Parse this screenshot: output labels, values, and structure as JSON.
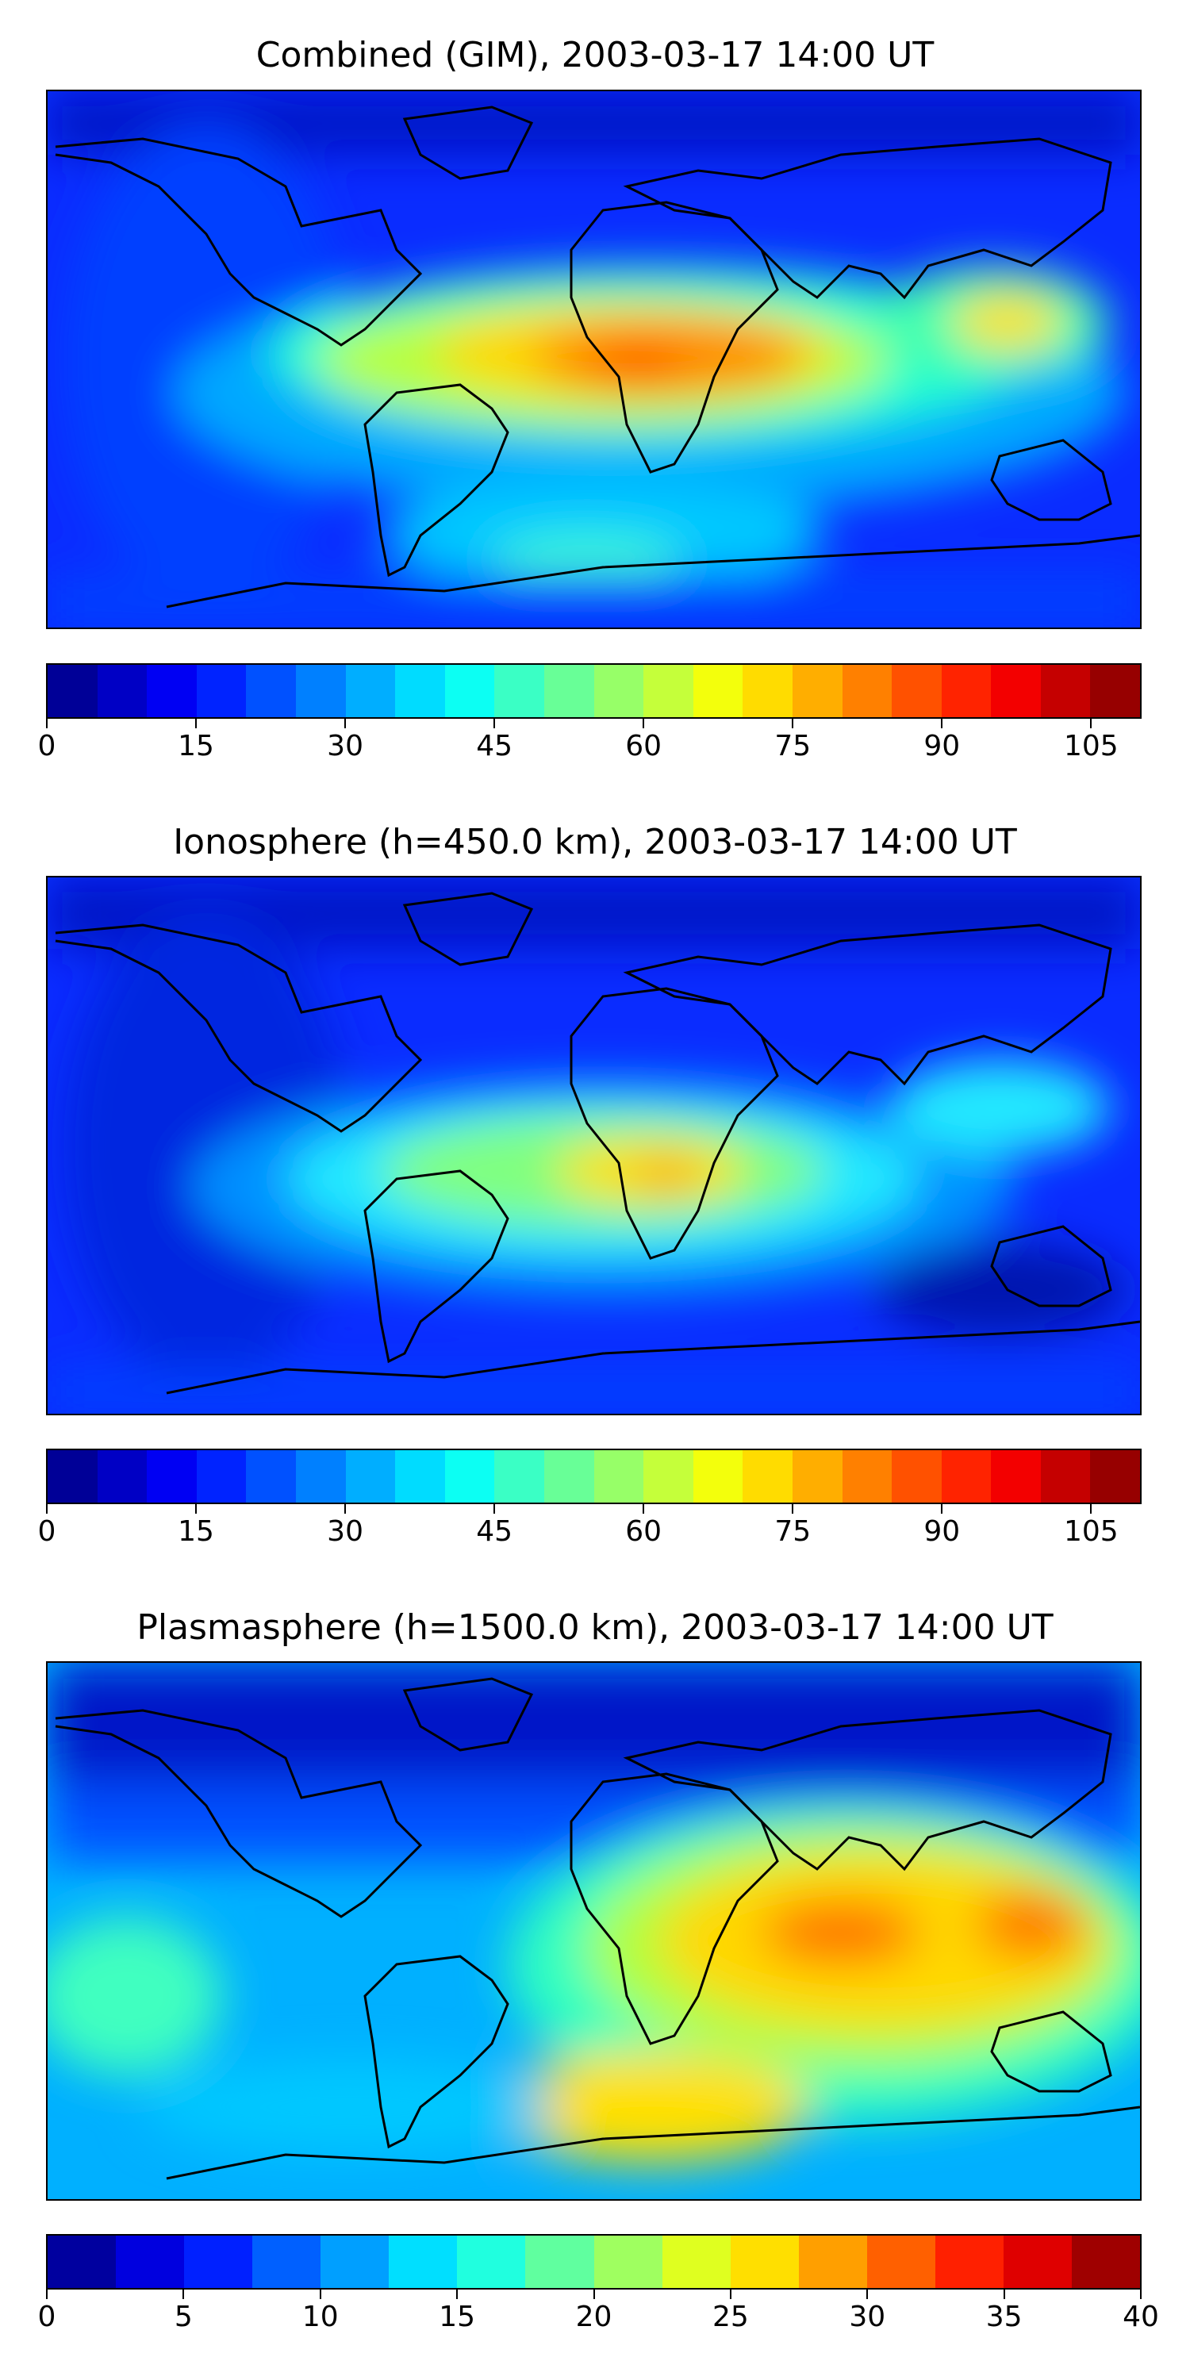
{
  "panels": [
    {
      "title": "Combined (GIM), 2003-03-17 14:00 UT",
      "colorbar": {
        "min": 0,
        "max": 110,
        "step": 5,
        "ticks": [
          "0",
          "15",
          "30",
          "45",
          "60",
          "75",
          "90",
          "105"
        ],
        "tick_values": [
          0,
          15,
          30,
          45,
          60,
          75,
          90,
          105
        ]
      }
    },
    {
      "title": "Ionosphere  (h=450.0 km), 2003-03-17 14:00 UT",
      "colorbar": {
        "min": 0,
        "max": 110,
        "step": 5,
        "ticks": [
          "0",
          "15",
          "30",
          "45",
          "60",
          "75",
          "90",
          "105"
        ],
        "tick_values": [
          0,
          15,
          30,
          45,
          60,
          75,
          90,
          105
        ]
      }
    },
    {
      "title": "Plasmasphere (h=1500.0 km), 2003-03-17 14:00 UT",
      "colorbar": {
        "min": 0,
        "max": 40,
        "step": 2.5,
        "ticks": [
          "0",
          "5",
          "10",
          "15",
          "20",
          "25",
          "30",
          "35",
          "40"
        ],
        "tick_values": [
          0,
          5,
          10,
          15,
          20,
          25,
          30,
          35,
          40
        ]
      }
    }
  ],
  "colormap": "jet",
  "colors": [
    "#00008f",
    "#0000ff",
    "#0080ff",
    "#00ffff",
    "#80ff80",
    "#ffff00",
    "#ff8000",
    "#ff0000",
    "#800000"
  ]
}
